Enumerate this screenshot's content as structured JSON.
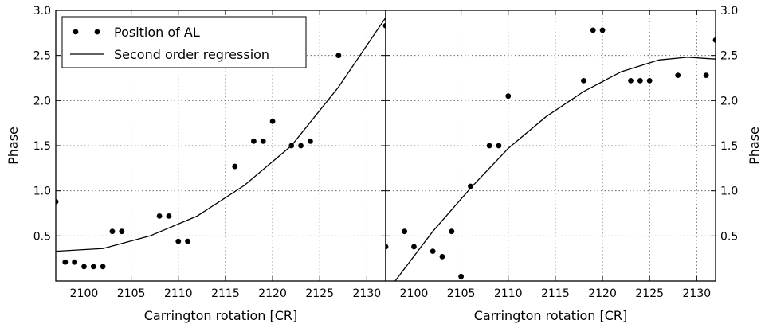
{
  "chart_data": [
    {
      "type": "scatter",
      "xlabel": "Carrington rotation [CR]",
      "ylabel": "Phase",
      "xlim": [
        2097,
        2132
      ],
      "ylim": [
        0,
        3.0
      ],
      "x_ticks": [
        2100,
        2105,
        2110,
        2115,
        2120,
        2125,
        2130
      ],
      "y_ticks": [
        0.5,
        1.0,
        1.5,
        2.0,
        2.5,
        3.0
      ],
      "y_tick_labels": [
        "0.5",
        "1.0",
        "1.5",
        "2.0",
        "2.5",
        "3.0"
      ],
      "y_axis_side": "left",
      "grid": true,
      "legend": {
        "position": "top-left",
        "entries": [
          "Position of AL",
          "Second order regression"
        ]
      },
      "series": [
        {
          "name": "Position of AL",
          "kind": "points",
          "x": [
            2097,
            2098,
            2099,
            2100,
            2101,
            2102,
            2103,
            2104,
            2108,
            2109,
            2110,
            2111,
            2116,
            2118,
            2119,
            2120,
            2122,
            2123,
            2124,
            2127,
            2132
          ],
          "y": [
            0.88,
            0.21,
            0.21,
            0.16,
            0.16,
            0.16,
            0.55,
            0.55,
            0.72,
            0.72,
            0.44,
            0.44,
            1.27,
            1.55,
            1.55,
            1.77,
            1.5,
            1.5,
            1.55,
            2.5,
            2.83
          ]
        },
        {
          "name": "Second order regression",
          "kind": "line",
          "x": [
            2097,
            2102,
            2107,
            2112,
            2117,
            2122,
            2127,
            2132
          ],
          "y": [
            0.33,
            0.36,
            0.5,
            0.72,
            1.06,
            1.5,
            2.15,
            2.92
          ]
        }
      ]
    },
    {
      "type": "scatter",
      "xlabel": "Carrington rotation [CR]",
      "ylabel": "Phase",
      "xlim": [
        2097,
        2132
      ],
      "ylim": [
        0,
        3.0
      ],
      "x_ticks": [
        2100,
        2105,
        2110,
        2115,
        2120,
        2125,
        2130
      ],
      "y_ticks": [
        0.5,
        1.0,
        1.5,
        2.0,
        2.5,
        3.0
      ],
      "y_tick_labels": [
        "0.5",
        "1.0",
        "1.5",
        "2.0",
        "2.5",
        "3.0"
      ],
      "y_axis_side": "right",
      "grid": true,
      "series": [
        {
          "kind": "points",
          "x": [
            2097,
            2099,
            2100,
            2102,
            2103,
            2104,
            2105,
            2106,
            2108,
            2109,
            2110,
            2118,
            2119,
            2120,
            2123,
            2124,
            2125,
            2128,
            2131,
            2132
          ],
          "y": [
            0.38,
            0.55,
            0.38,
            0.33,
            0.27,
            0.55,
            0.05,
            1.05,
            1.5,
            1.5,
            2.05,
            2.22,
            2.78,
            2.78,
            2.22,
            2.22,
            2.22,
            2.28,
            2.28,
            2.67
          ]
        },
        {
          "kind": "line",
          "x": [
            2098,
            2102,
            2106,
            2110,
            2114,
            2118,
            2122,
            2126,
            2129,
            2132
          ],
          "y": [
            0.0,
            0.55,
            1.03,
            1.47,
            1.82,
            2.1,
            2.32,
            2.45,
            2.48,
            2.46
          ]
        }
      ]
    }
  ]
}
